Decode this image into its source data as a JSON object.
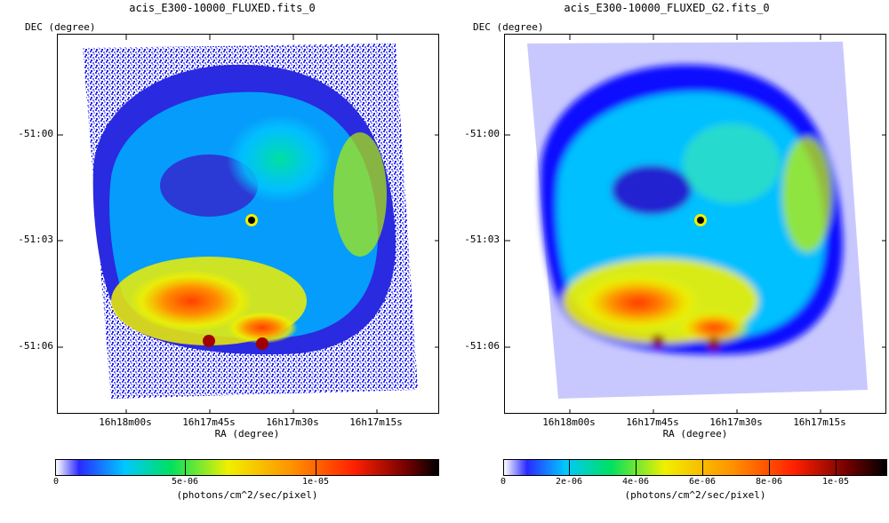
{
  "left": {
    "title": "acis_E300-10000_FLUXED.fits_0",
    "dec_axis_label": "DEC (degree)",
    "ra_axis_label": "RA (degree)",
    "y_ticks": [
      "-51:00",
      "-51:03",
      "-51:06"
    ],
    "x_ticks": [
      "16h18m00s",
      "16h17m45s",
      "16h17m30s",
      "16h17m15s"
    ],
    "colorbar_ticks": [
      "0",
      "5e-06",
      "1e-05"
    ],
    "colorbar_units": "(photons/cm^2/sec/pixel)"
  },
  "right": {
    "title": "acis_E300-10000_FLUXED_G2.fits_0",
    "dec_axis_label": "DEC (degree)",
    "ra_axis_label": "RA (degree)",
    "y_ticks": [
      "-51:00",
      "-51:03",
      "-51:06"
    ],
    "x_ticks": [
      "16h18m00s",
      "16h17m45s",
      "16h17m30s",
      "16h17m15s"
    ],
    "colorbar_ticks": [
      "0",
      "2e-06",
      "4e-06",
      "6e-06",
      "8e-06",
      "1e-05"
    ],
    "colorbar_units": "(photons/cm^2/sec/pixel)"
  },
  "colormap": [
    "#ffffff",
    "#2a2aff",
    "#00c8ff",
    "#00e060",
    "#f0f000",
    "#ff9000",
    "#ff2000",
    "#700000",
    "#000000"
  ]
}
